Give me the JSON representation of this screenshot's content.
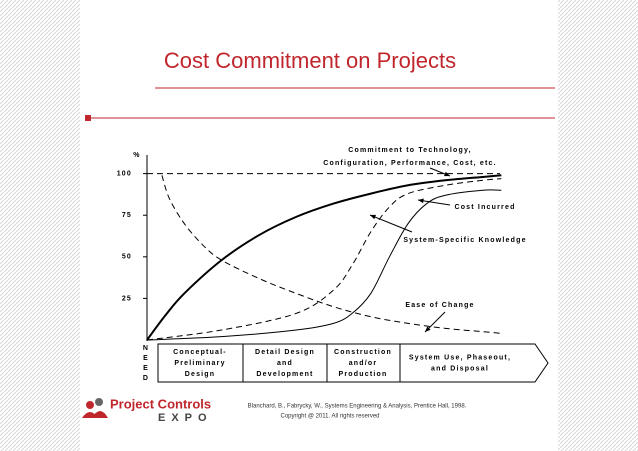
{
  "chart_data": {
    "type": "line",
    "title": "Cost Commitment on Projects",
    "y_unit": "%",
    "ylim": [
      0,
      110
    ],
    "yticks": [
      25,
      50,
      75,
      100
    ],
    "xlim": [
      0,
      100
    ],
    "series": [
      {
        "name": "Commitment to Technology, Configuration, Performance, Cost, etc.",
        "color": "#000000",
        "style": "solid-thick",
        "x": [
          0,
          5,
          10,
          20,
          30,
          40,
          50,
          60,
          70,
          80,
          90,
          95
        ],
        "values": [
          0,
          15,
          28,
          48,
          63,
          74,
          82,
          88,
          93,
          96,
          98,
          99
        ]
      },
      {
        "name": "Cost Incurred",
        "color": "#000000",
        "style": "solid",
        "x": [
          0,
          20,
          40,
          50,
          55,
          60,
          65,
          70,
          75,
          80,
          90,
          95
        ],
        "values": [
          0,
          2,
          6,
          10,
          16,
          28,
          50,
          70,
          82,
          87,
          90,
          90
        ]
      },
      {
        "name": "System-Specific Knowledge",
        "color": "#000000",
        "style": "dashed",
        "x": [
          0,
          20,
          40,
          50,
          55,
          60,
          65,
          70,
          80,
          90,
          95
        ],
        "values": [
          0,
          6,
          16,
          30,
          45,
          65,
          80,
          88,
          93,
          96,
          97
        ]
      },
      {
        "name": "Ease of Change",
        "color": "#000000",
        "style": "dashed",
        "x": [
          4,
          6,
          10,
          15,
          20,
          30,
          40,
          50,
          60,
          70,
          80,
          90,
          95
        ],
        "values": [
          99,
          85,
          70,
          57,
          48,
          37,
          28,
          20,
          14,
          10,
          7,
          5,
          4
        ]
      }
    ]
  },
  "phases": [
    [
      "Conceptual-",
      "Preliminary",
      "Design"
    ],
    [
      "Detail Design",
      "and",
      "Development"
    ],
    [
      "Construction",
      "and/or",
      "Production"
    ],
    [
      "System Use, Phaseout,",
      "and Disposal"
    ]
  ],
  "need": [
    "N",
    "E",
    "E",
    "D"
  ],
  "footer": {
    "logo": "Project Controls",
    "logo_sub": "EXPO",
    "citation": "Blanchard, B., Fabrycky, W., Systems Engineering & Analysis, Prentice Hall, 1998.",
    "copyright": "Copyright @ 2011. All rights reserved"
  }
}
